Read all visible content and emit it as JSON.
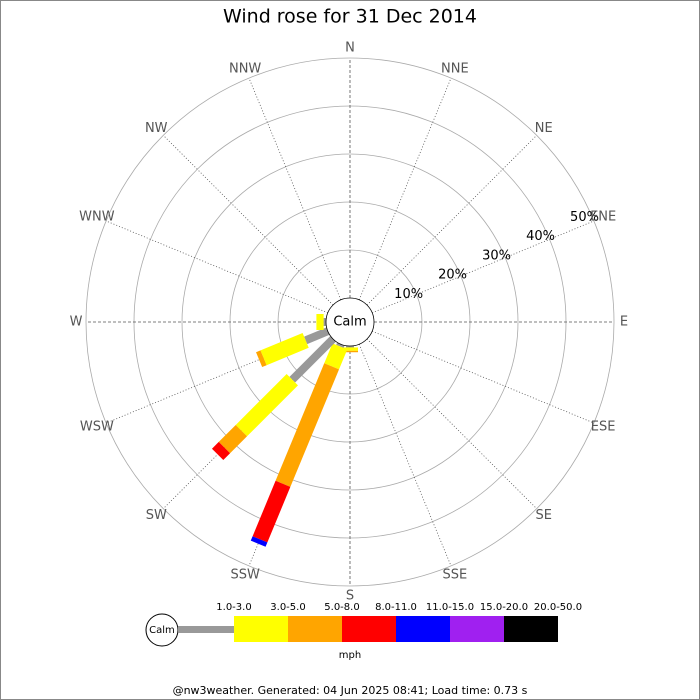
{
  "chart_data": {
    "type": "wind-rose",
    "title": "Wind rose for 31 Dec 2014",
    "center_label": "Calm",
    "directions": [
      "N",
      "NNE",
      "NE",
      "ENE",
      "E",
      "ESE",
      "SE",
      "SSE",
      "S",
      "SSW",
      "SW",
      "WSW",
      "W",
      "WNW",
      "NW",
      "NNW"
    ],
    "series": [
      {
        "name": "1.0-3.0",
        "color": "#999999",
        "values": [
          0,
          0,
          0,
          0,
          0,
          0,
          0,
          0,
          0.3,
          0.5,
          12,
          5,
          0.5,
          0,
          0,
          0
        ]
      },
      {
        "name": "3.0-5.0",
        "color": "#ffff00",
        "values": [
          0,
          0,
          0,
          0,
          0,
          0,
          0,
          0,
          0.7,
          4.5,
          15,
          9.5,
          1.5,
          0,
          0,
          0
        ]
      },
      {
        "name": "5.0-8.0",
        "color": "#ffa500",
        "values": [
          0,
          0,
          0,
          0,
          0,
          0,
          0,
          0,
          0.3,
          26.5,
          5,
          1,
          0,
          0,
          0,
          0
        ]
      },
      {
        "name": "8.0-11.0",
        "color": "#ff0000",
        "values": [
          0,
          0,
          0,
          0,
          0,
          0,
          0,
          0,
          0,
          12.5,
          2,
          0,
          0,
          0,
          0,
          0
        ]
      },
      {
        "name": "11.0-15.0",
        "color": "#0000ff",
        "values": [
          0,
          0,
          0,
          0,
          0,
          0,
          0,
          0,
          0,
          1,
          0,
          0,
          0,
          0,
          0,
          0
        ]
      },
      {
        "name": "15.0-20.0",
        "color": "#a020f0",
        "values": [
          0,
          0,
          0,
          0,
          0,
          0,
          0,
          0,
          0,
          0,
          0,
          0,
          0,
          0,
          0,
          0
        ]
      },
      {
        "name": "20.0-50.0",
        "color": "#000000",
        "values": [
          0,
          0,
          0,
          0,
          0,
          0,
          0,
          0,
          0,
          0,
          0,
          0,
          0,
          0,
          0,
          0
        ]
      }
    ],
    "ylim": [
      0,
      50
    ],
    "yticks": [
      {
        "value": 10,
        "label": "10%"
      },
      {
        "value": 20,
        "label": "20%"
      },
      {
        "value": 30,
        "label": "30%"
      },
      {
        "value": 40,
        "label": "40%"
      },
      {
        "value": 50,
        "label": "50%"
      }
    ],
    "legend_unit": "mph",
    "footer": "@nw3weather. Generated: 04 Jun 2025 08:41; Load time: 0.73 s"
  }
}
